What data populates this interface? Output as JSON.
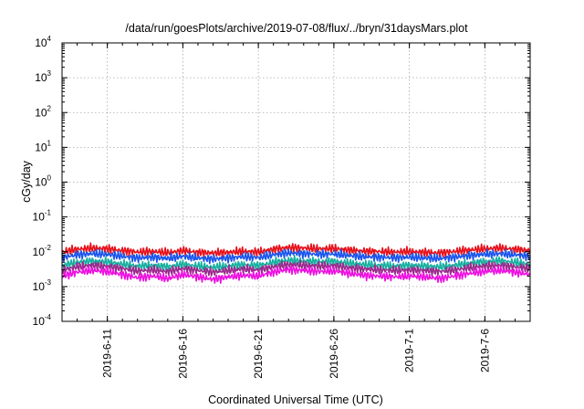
{
  "chart_data": {
    "type": "line",
    "title": "/data/run/goesPlots/archive/2019-07-08/flux/../bryn/31daysMars.plot",
    "xlabel": "Coordinated Universal Time (UTC)",
    "ylabel": "cGy/day",
    "y_scale": "log",
    "ylim": [
      0.0001,
      10000
    ],
    "y_ticks": [
      {
        "exp": "-4",
        "value": 0.0001
      },
      {
        "exp": "-3",
        "value": 0.001
      },
      {
        "exp": "-2",
        "value": 0.01
      },
      {
        "exp": "-1",
        "value": 0.1
      },
      {
        "exp": "0",
        "value": 1
      },
      {
        "exp": "1",
        "value": 10
      },
      {
        "exp": "2",
        "value": 100
      },
      {
        "exp": "3",
        "value": 1000
      },
      {
        "exp": "4",
        "value": 10000
      }
    ],
    "xlim": [
      "2019-06-08",
      "2019-07-09"
    ],
    "x_ticks": [
      "2019-6-11",
      "2019-6-16",
      "2019-6-21",
      "2019-6-26",
      "2019-7-1",
      "2019-7-6"
    ],
    "x_tick_dates": [
      "2019-06-11",
      "2019-06-16",
      "2019-06-21",
      "2019-06-26",
      "2019-07-01",
      "2019-07-06"
    ],
    "grid": true,
    "series": [
      {
        "color": "#e8101a",
        "x": [
          "2019-06-08",
          "2019-06-09",
          "2019-06-10",
          "2019-06-11",
          "2019-06-12",
          "2019-06-13",
          "2019-06-14",
          "2019-06-15",
          "2019-06-16",
          "2019-06-17",
          "2019-06-18",
          "2019-06-19",
          "2019-06-20",
          "2019-06-21",
          "2019-06-22",
          "2019-06-23",
          "2019-06-24",
          "2019-06-25",
          "2019-06-26",
          "2019-06-27",
          "2019-06-28",
          "2019-06-29",
          "2019-06-30",
          "2019-07-01",
          "2019-07-02",
          "2019-07-03",
          "2019-07-04",
          "2019-07-05",
          "2019-07-06",
          "2019-07-07",
          "2019-07-08",
          "2019-07-09"
        ],
        "values": [
          0.0098,
          0.0118,
          0.0128,
          0.0122,
          0.0108,
          0.0098,
          0.0102,
          0.0094,
          0.0108,
          0.0096,
          0.0092,
          0.0096,
          0.0104,
          0.0098,
          0.0118,
          0.0132,
          0.0128,
          0.0122,
          0.0124,
          0.0112,
          0.0104,
          0.0102,
          0.0098,
          0.0102,
          0.0096,
          0.0093,
          0.0102,
          0.0113,
          0.0122,
          0.0128,
          0.0118,
          0.0108
        ]
      },
      {
        "color": "#1a55ee",
        "x": [
          "2019-06-08",
          "2019-06-09",
          "2019-06-10",
          "2019-06-11",
          "2019-06-12",
          "2019-06-13",
          "2019-06-14",
          "2019-06-15",
          "2019-06-16",
          "2019-06-17",
          "2019-06-18",
          "2019-06-19",
          "2019-06-20",
          "2019-06-21",
          "2019-06-22",
          "2019-06-23",
          "2019-06-24",
          "2019-06-25",
          "2019-06-26",
          "2019-06-27",
          "2019-06-28",
          "2019-06-29",
          "2019-06-30",
          "2019-07-01",
          "2019-07-02",
          "2019-07-03",
          "2019-07-04",
          "2019-07-05",
          "2019-07-06",
          "2019-07-07",
          "2019-07-08",
          "2019-07-09"
        ],
        "values": [
          0.0068,
          0.0082,
          0.0088,
          0.0084,
          0.0074,
          0.0066,
          0.007,
          0.0064,
          0.0074,
          0.0066,
          0.0062,
          0.0066,
          0.0072,
          0.0068,
          0.0082,
          0.0092,
          0.0088,
          0.0085,
          0.0086,
          0.0078,
          0.0072,
          0.007,
          0.0067,
          0.007,
          0.0066,
          0.0064,
          0.007,
          0.0078,
          0.0085,
          0.0088,
          0.0082,
          0.0074
        ]
      },
      {
        "color": "#16b0a0",
        "x": [
          "2019-06-08",
          "2019-06-09",
          "2019-06-10",
          "2019-06-11",
          "2019-06-12",
          "2019-06-13",
          "2019-06-14",
          "2019-06-15",
          "2019-06-16",
          "2019-06-17",
          "2019-06-18",
          "2019-06-19",
          "2019-06-20",
          "2019-06-21",
          "2019-06-22",
          "2019-06-23",
          "2019-06-24",
          "2019-06-25",
          "2019-06-26",
          "2019-06-27",
          "2019-06-28",
          "2019-06-29",
          "2019-06-30",
          "2019-07-01",
          "2019-07-02",
          "2019-07-03",
          "2019-07-04",
          "2019-07-05",
          "2019-07-06",
          "2019-07-07",
          "2019-07-08",
          "2019-07-09"
        ],
        "values": [
          0.004,
          0.005,
          0.0054,
          0.0051,
          0.0044,
          0.0039,
          0.0041,
          0.0037,
          0.0044,
          0.0039,
          0.0036,
          0.0039,
          0.0043,
          0.004,
          0.005,
          0.0057,
          0.0054,
          0.0052,
          0.0053,
          0.0047,
          0.0043,
          0.0041,
          0.0039,
          0.0041,
          0.0039,
          0.0037,
          0.0041,
          0.0047,
          0.0052,
          0.0055,
          0.005,
          0.0044
        ]
      },
      {
        "color": "#9a2a8c",
        "x": [
          "2019-06-08",
          "2019-06-09",
          "2019-06-10",
          "2019-06-11",
          "2019-06-12",
          "2019-06-13",
          "2019-06-14",
          "2019-06-15",
          "2019-06-16",
          "2019-06-17",
          "2019-06-18",
          "2019-06-19",
          "2019-06-20",
          "2019-06-21",
          "2019-06-22",
          "2019-06-23",
          "2019-06-24",
          "2019-06-25",
          "2019-06-26",
          "2019-06-27",
          "2019-06-28",
          "2019-06-29",
          "2019-06-30",
          "2019-07-01",
          "2019-07-02",
          "2019-07-03",
          "2019-07-04",
          "2019-07-05",
          "2019-07-06",
          "2019-07-07",
          "2019-07-08",
          "2019-07-09"
        ],
        "values": [
          0.003,
          0.0037,
          0.0041,
          0.0038,
          0.0033,
          0.0028,
          0.003,
          0.0027,
          0.0033,
          0.0029,
          0.0026,
          0.0029,
          0.0032,
          0.003,
          0.0037,
          0.0043,
          0.0041,
          0.0039,
          0.004,
          0.0035,
          0.0032,
          0.003,
          0.0029,
          0.003,
          0.0029,
          0.0027,
          0.003,
          0.0035,
          0.0039,
          0.0041,
          0.0037,
          0.0033
        ]
      },
      {
        "color": "#ee10e0",
        "x": [
          "2019-06-08",
          "2019-06-09",
          "2019-06-10",
          "2019-06-11",
          "2019-06-12",
          "2019-06-13",
          "2019-06-14",
          "2019-06-15",
          "2019-06-16",
          "2019-06-17",
          "2019-06-18",
          "2019-06-19",
          "2019-06-20",
          "2019-06-21",
          "2019-06-22",
          "2019-06-23",
          "2019-06-24",
          "2019-06-25",
          "2019-06-26",
          "2019-06-27",
          "2019-06-28",
          "2019-06-29",
          "2019-06-30",
          "2019-07-01",
          "2019-07-02",
          "2019-07-03",
          "2019-07-04",
          "2019-07-05",
          "2019-07-06",
          "2019-07-07",
          "2019-07-08",
          "2019-07-09"
        ],
        "values": [
          0.002,
          0.0026,
          0.0029,
          0.0027,
          0.0022,
          0.0018,
          0.002,
          0.0017,
          0.0022,
          0.0019,
          0.0016,
          0.0019,
          0.0021,
          0.002,
          0.0026,
          0.0031,
          0.0029,
          0.0027,
          0.0028,
          0.0024,
          0.0021,
          0.002,
          0.0019,
          0.002,
          0.0019,
          0.0017,
          0.002,
          0.0024,
          0.0027,
          0.0029,
          0.0026,
          0.0022
        ]
      }
    ]
  }
}
